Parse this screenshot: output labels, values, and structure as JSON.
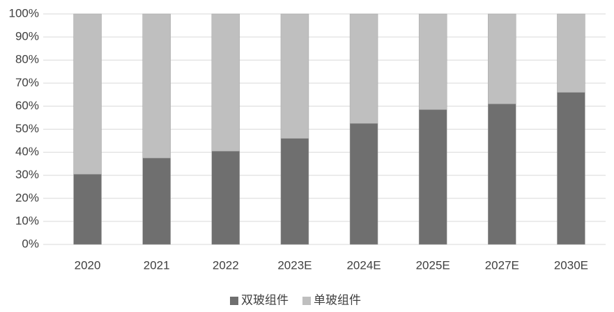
{
  "chart_data": {
    "type": "stacked_bar",
    "categories": [
      "2020",
      "2021",
      "2022",
      "2023E",
      "2024E",
      "2025E",
      "2027E",
      "2030E"
    ],
    "series": [
      {
        "name": "双玻组件",
        "color": "#6f6f6f",
        "values": [
          30.5,
          37.5,
          40.5,
          46,
          52.5,
          58.5,
          61,
          66
        ]
      },
      {
        "name": "单玻组件",
        "color": "#bfbfbf",
        "values": [
          69.5,
          62.5,
          59.5,
          54,
          47.5,
          41.5,
          39,
          34
        ]
      }
    ],
    "ylim": [
      0,
      100
    ],
    "yticks": [
      {
        "value": 0,
        "label": "0%"
      },
      {
        "value": 10,
        "label": "10%"
      },
      {
        "value": 20,
        "label": "20%"
      },
      {
        "value": 30,
        "label": "30%"
      },
      {
        "value": 40,
        "label": "40%"
      },
      {
        "value": 50,
        "label": "50%"
      },
      {
        "value": 60,
        "label": "60%"
      },
      {
        "value": 70,
        "label": "70%"
      },
      {
        "value": 80,
        "label": "80%"
      },
      {
        "value": 90,
        "label": "90%"
      },
      {
        "value": 100,
        "label": "100%"
      }
    ],
    "grid": true,
    "legend": "bottom"
  }
}
